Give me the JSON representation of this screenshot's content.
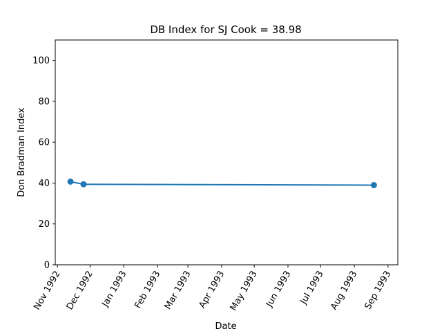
{
  "chart_data": {
    "type": "line",
    "title": "DB Index for SJ Cook = 38.98",
    "xlabel": "Date",
    "ylabel": "Don Bradman Index",
    "ylim": [
      0,
      110
    ],
    "yticks": [
      0,
      20,
      40,
      60,
      80,
      100
    ],
    "xlim": [
      "1992-10-30",
      "1993-09-10"
    ],
    "xticks": [
      {
        "date": "1992-11-01",
        "label": "Nov 1992"
      },
      {
        "date": "1992-12-01",
        "label": "Dec 1992"
      },
      {
        "date": "1993-01-01",
        "label": "Jan 1993"
      },
      {
        "date": "1993-02-01",
        "label": "Feb 1993"
      },
      {
        "date": "1993-03-01",
        "label": "Mar 1993"
      },
      {
        "date": "1993-04-01",
        "label": "Apr 1993"
      },
      {
        "date": "1993-05-01",
        "label": "May 1993"
      },
      {
        "date": "1993-06-01",
        "label": "Jun 1993"
      },
      {
        "date": "1993-07-01",
        "label": "Jul 1993"
      },
      {
        "date": "1993-08-01",
        "label": "Aug 1993"
      },
      {
        "date": "1993-09-01",
        "label": "Sep 1993"
      }
    ],
    "series": [
      {
        "color": "#1f77b4",
        "points": [
          {
            "x": "1992-11-13",
            "y": 40.7
          },
          {
            "x": "1992-11-25",
            "y": 39.4
          },
          {
            "x": "1993-08-19",
            "y": 38.98
          }
        ]
      }
    ],
    "grid": false,
    "legend": "none"
  }
}
